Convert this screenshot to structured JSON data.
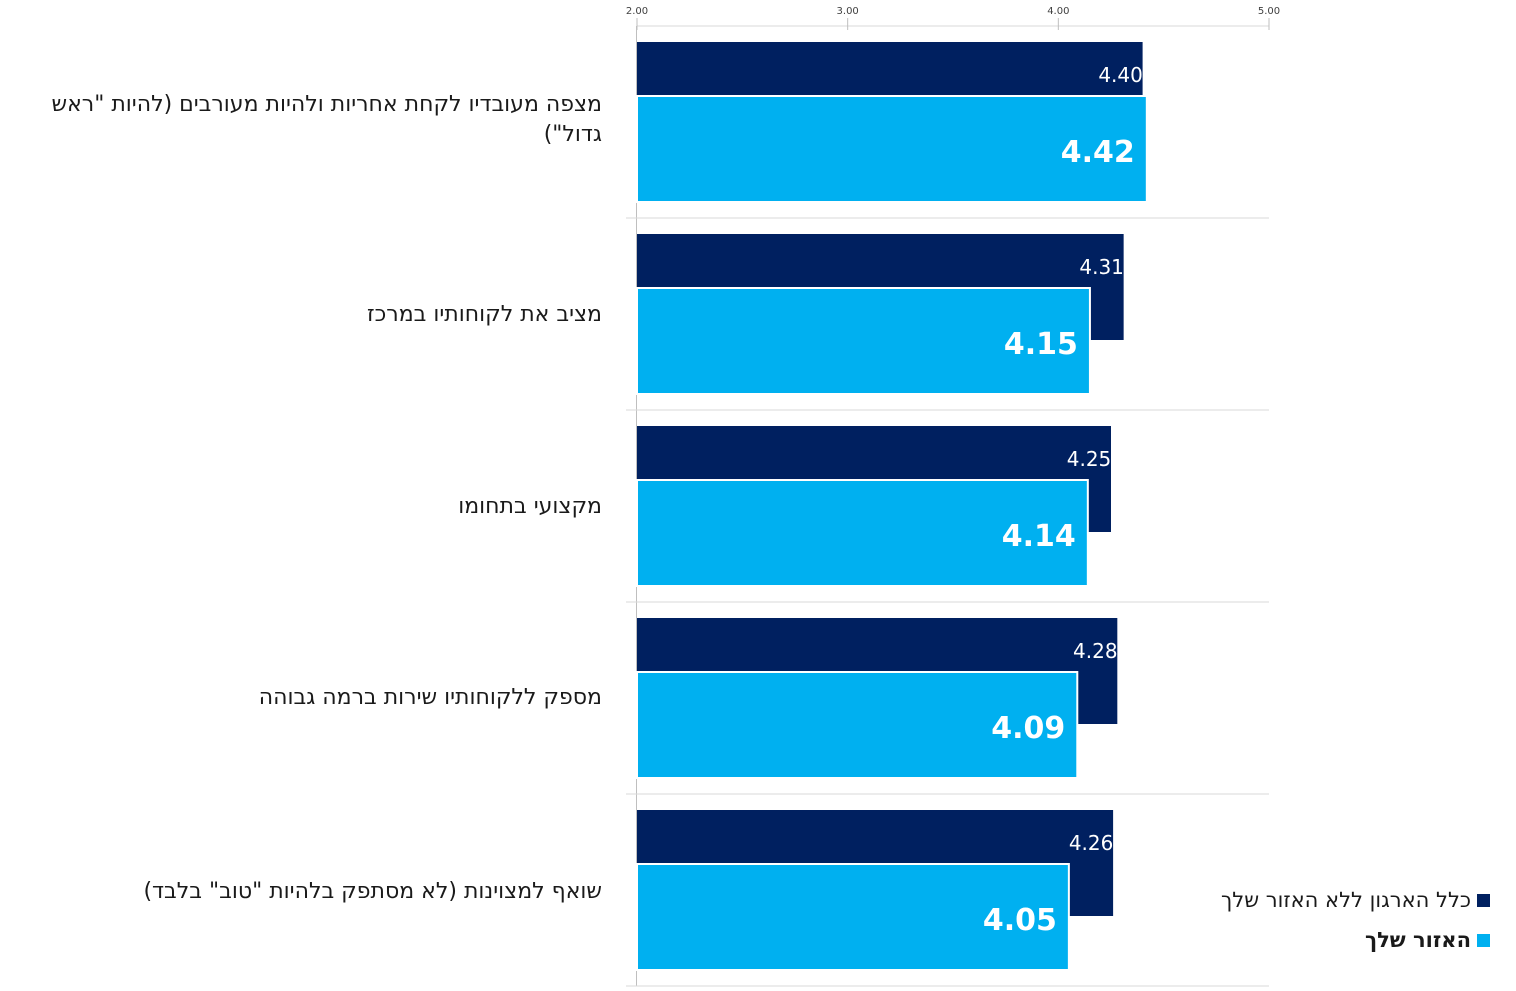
{
  "chart_data": {
    "type": "bar",
    "orientation": "horizontal",
    "categories": [
      "מצפה מעובדיו לקחת אחריות ולהיות מעורבים (להיות \"ראש גדול\")",
      "מציב את לקוחותיו במרכז",
      "מקצועי בתחומו",
      "מספק ללקוחותיו שירות ברמה גבוהה",
      "שואף למצוינות (לא מסתפק בלהיות \"טוב\" בלבד)"
    ],
    "series": [
      {
        "name": "כלל הארגון ללא האזור שלך",
        "color": "#002060",
        "values": [
          4.4,
          4.31,
          4.25,
          4.28,
          4.26
        ],
        "labels": [
          "4.40",
          "4.31",
          "4.25",
          "4.28",
          "4.26"
        ]
      },
      {
        "name": "האזור שלך",
        "color": "#00B0F0",
        "values": [
          4.42,
          4.15,
          4.14,
          4.09,
          4.05
        ],
        "labels": [
          "4.42",
          "4.15",
          "4.14",
          "4.09",
          "4.05"
        ]
      }
    ],
    "xlim": [
      2.0,
      5.0
    ],
    "xticks": [
      "2.00",
      "3.00",
      "4.00",
      "5.00"
    ],
    "legend_position": "bottom-right",
    "grid": true
  }
}
